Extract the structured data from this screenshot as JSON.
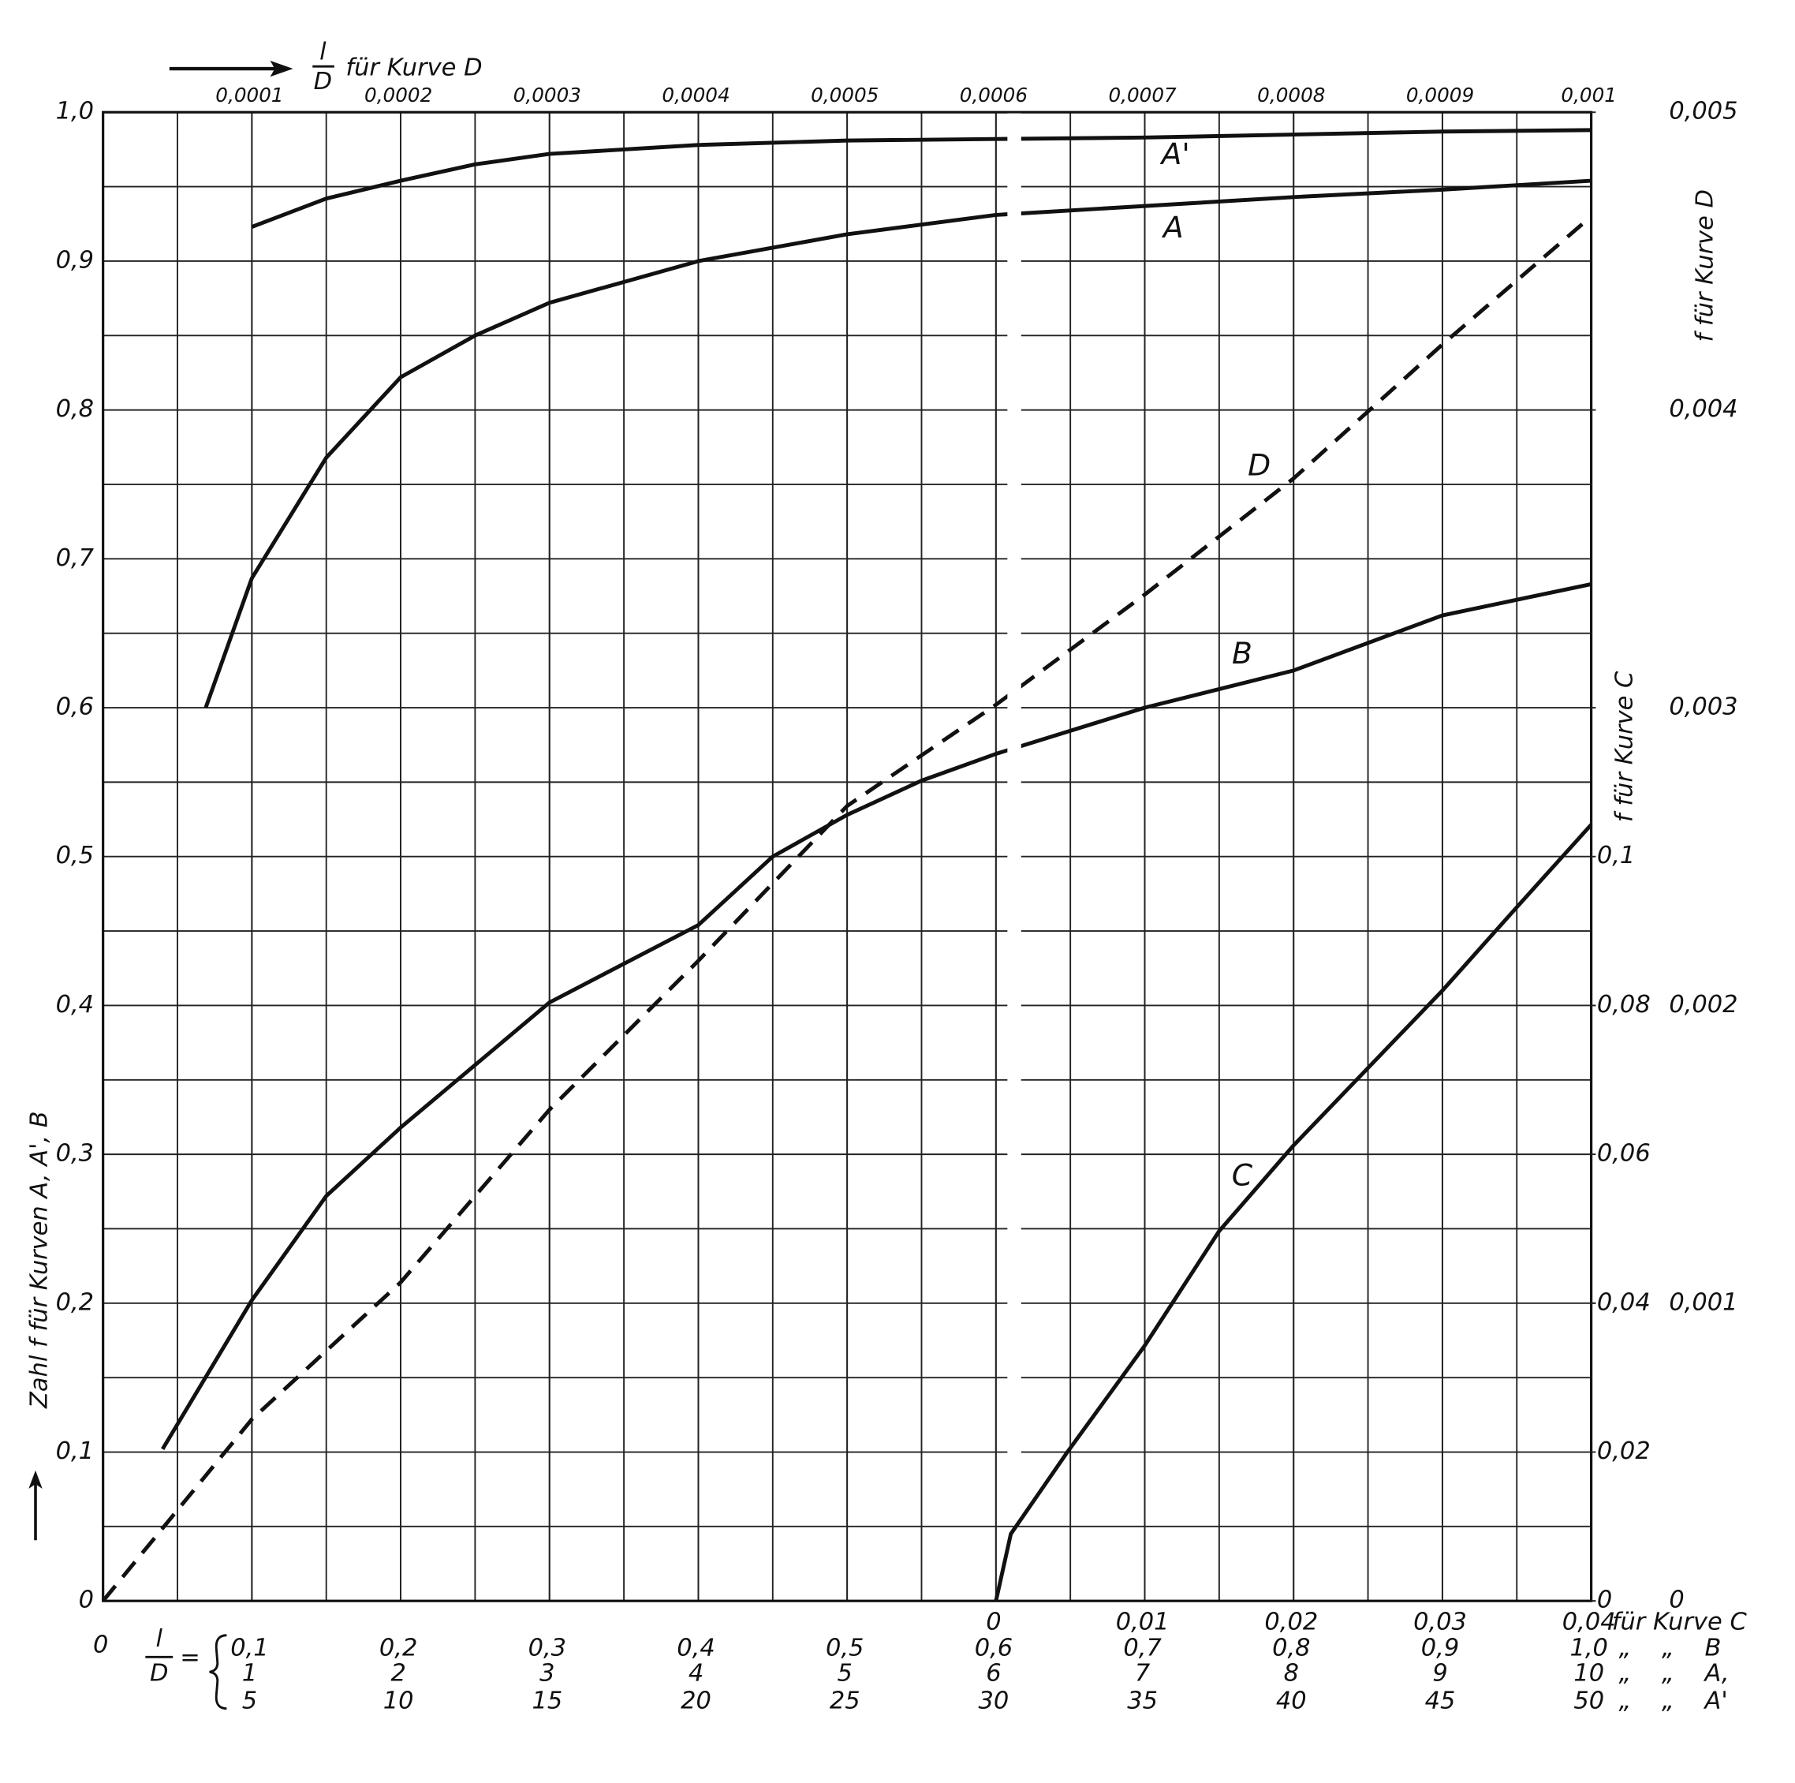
{
  "chart_data": {
    "type": "line",
    "y_label": "Zahl f für Kurven A, A', B",
    "ylim": [
      0,
      1
    ],
    "yticks": [
      0,
      {
        "value": 0.1,
        "label": "0,1"
      },
      {
        "value": 0.2,
        "label": "0,2"
      },
      {
        "value": 0.3,
        "label": "0,3"
      },
      {
        "value": 0.4,
        "label": "0,4"
      },
      {
        "value": 0.5,
        "label": "0,5"
      },
      {
        "value": 0.6,
        "label": "0,6"
      },
      {
        "value": 0.7,
        "label": "0,7"
      },
      {
        "value": 0.8,
        "label": "0,8"
      },
      {
        "value": 0.9,
        "label": "0,9"
      },
      {
        "value": 1,
        "label": "1,0"
      }
    ],
    "yminor": [
      0.05,
      0.15,
      0.25,
      0.35,
      0.45,
      0.55,
      0.65,
      0.75,
      0.85,
      0.95
    ],
    "y2_label": "f für Kurve D",
    "y2lim": [
      0,
      0.005
    ],
    "y2ticks": [
      0,
      {
        "value": 0.001,
        "label": "0,001"
      },
      {
        "value": 0.002,
        "label": "0,002"
      },
      {
        "value": 0.003,
        "label": "0,003"
      },
      {
        "value": 0.004,
        "label": "0,004"
      },
      {
        "value": 0.005,
        "label": "0,005"
      }
    ],
    "y3_label": "f für Kurve C",
    "y3lim": [
      0,
      0.2
    ],
    "y3ticks": [
      0,
      {
        "value": 0.02,
        "label": "0,02"
      },
      {
        "value": 0.04,
        "label": "0,04"
      },
      {
        "value": 0.06,
        "label": "0,06"
      },
      {
        "value": 0.08,
        "label": "0,08"
      },
      {
        "value": 0.1,
        "label": "0,1"
      }
    ],
    "x_top_label": {
      "numerator": "l",
      "denominator": "D",
      "text": "für Kurve D"
    },
    "x_bottom_label": {
      "origin": "0",
      "numerator": "l",
      "denominator": "D",
      "equals": "="
    },
    "xaxes": [
      {
        "xlim": [
          0,
          0.001
        ],
        "xticks": [
          {
            "value": 0.0001,
            "label": "0,0001"
          },
          {
            "value": 0.0002,
            "label": "0,0002"
          },
          {
            "value": 0.0003,
            "label": "0,0003"
          },
          {
            "value": 0.0004,
            "label": "0,0004"
          },
          {
            "value": 0.0005,
            "label": "0,0005"
          },
          {
            "value": 0.0006,
            "label": "0,0006"
          },
          {
            "value": 0.0007,
            "label": "0,0007"
          },
          {
            "value": 0.0008,
            "label": "0,0008"
          },
          {
            "value": 0.0009,
            "label": "0,0009"
          },
          {
            "value": 0.001,
            "label": "0,001"
          }
        ]
      },
      {
        "suffix": "für Kurve C",
        "xlim": [
          -0.06,
          0.04
        ],
        "xticks": [
          0,
          {
            "value": 0.01,
            "label": "0,01"
          },
          {
            "value": 0.02,
            "label": "0,02"
          },
          {
            "value": 0.03,
            "label": "0,03"
          },
          {
            "value": 0.04,
            "label": "0,04"
          }
        ]
      },
      {
        "suffix": "„    „    B",
        "xlim": [
          0,
          1
        ],
        "xticks": [
          {
            "value": 0.1,
            "label": "0,1"
          },
          {
            "value": 0.2,
            "label": "0,2"
          },
          {
            "value": 0.3,
            "label": "0,3"
          },
          {
            "value": 0.4,
            "label": "0,4"
          },
          {
            "value": 0.5,
            "label": "0,5"
          },
          {
            "value": 0.6,
            "label": "0,6"
          },
          {
            "value": 0.7,
            "label": "0,7"
          },
          {
            "value": 0.8,
            "label": "0,8"
          },
          {
            "value": 0.9,
            "label": "0,9"
          },
          {
            "value": 1,
            "label": "1,0"
          }
        ]
      },
      {
        "suffix": "„    „    A,",
        "xlim": [
          0,
          10
        ],
        "xticks": [
          1,
          2,
          3,
          4,
          5,
          6,
          7,
          8,
          9,
          10
        ]
      },
      {
        "suffix": "„    „    A'",
        "xlim": [
          0,
          50
        ],
        "xticks": [
          5,
          10,
          15,
          20,
          25,
          30,
          35,
          40,
          45,
          50
        ]
      }
    ],
    "xminor": [
      0.05,
      0.15,
      0.25,
      0.35,
      0.45,
      0.55,
      0.65,
      0.75,
      0.85,
      0.95
    ],
    "grid": true,
    "series": [
      {
        "name": "A'",
        "xaxis": 4,
        "axis": "y",
        "color": "#111111",
        "dashed": false,
        "x": [
          5,
          7.5,
          10,
          12.5,
          15,
          20,
          25,
          30,
          35,
          40,
          45,
          50
        ],
        "values": [
          0.923,
          0.942,
          0.954,
          0.965,
          0.972,
          0.978,
          0.981,
          0.982,
          0.983,
          0.985,
          0.987,
          0.988
        ]
      },
      {
        "name": "A",
        "xaxis": 3,
        "axis": "y",
        "color": "#111111",
        "dashed": false,
        "x": [
          0.69,
          1,
          1.5,
          2,
          2.5,
          3,
          4,
          5,
          6,
          7,
          8,
          9,
          10
        ],
        "values": [
          0.6,
          0.687,
          0.768,
          0.822,
          0.85,
          0.872,
          0.9,
          0.918,
          0.931,
          0.937,
          0.943,
          0.948,
          0.954
        ]
      },
      {
        "name": "D",
        "xaxis": 0,
        "axis": "y2",
        "color": "#111111",
        "dashed": true,
        "x": [
          0,
          0.0001,
          0.0002,
          0.0003,
          0.0004,
          0.0005,
          0.0006,
          0.0007,
          0.0008,
          0.0009,
          0.001
        ],
        "values": [
          0,
          0.00061,
          0.00107,
          0.00165,
          0.00215,
          0.00267,
          0.00301,
          0.00338,
          0.00377,
          0.00422,
          0.00465
        ]
      },
      {
        "name": "B",
        "xaxis": 2,
        "axis": "y",
        "color": "#111111",
        "dashed": false,
        "x": [
          0.04,
          0.1,
          0.15,
          0.2,
          0.3,
          0.4,
          0.45,
          0.5,
          0.55,
          0.6,
          0.7,
          0.8,
          0.9,
          1
        ],
        "values": [
          0.102,
          0.202,
          0.272,
          0.318,
          0.402,
          0.454,
          0.5,
          0.528,
          0.551,
          0.569,
          0.6,
          0.625,
          0.662,
          0.683
        ]
      },
      {
        "name": "C",
        "xaxis": 1,
        "axis": "y3",
        "color": "#111111",
        "dashed": false,
        "x": [
          0,
          0.001,
          0.0048,
          0.01,
          0.015,
          0.02,
          0.025,
          0.03,
          0.035,
          0.04
        ],
        "values": [
          0,
          0.009,
          0.02,
          0.0343,
          0.0497,
          0.0612,
          0.0716,
          0.082,
          0.0932,
          0.1043
        ]
      }
    ]
  }
}
